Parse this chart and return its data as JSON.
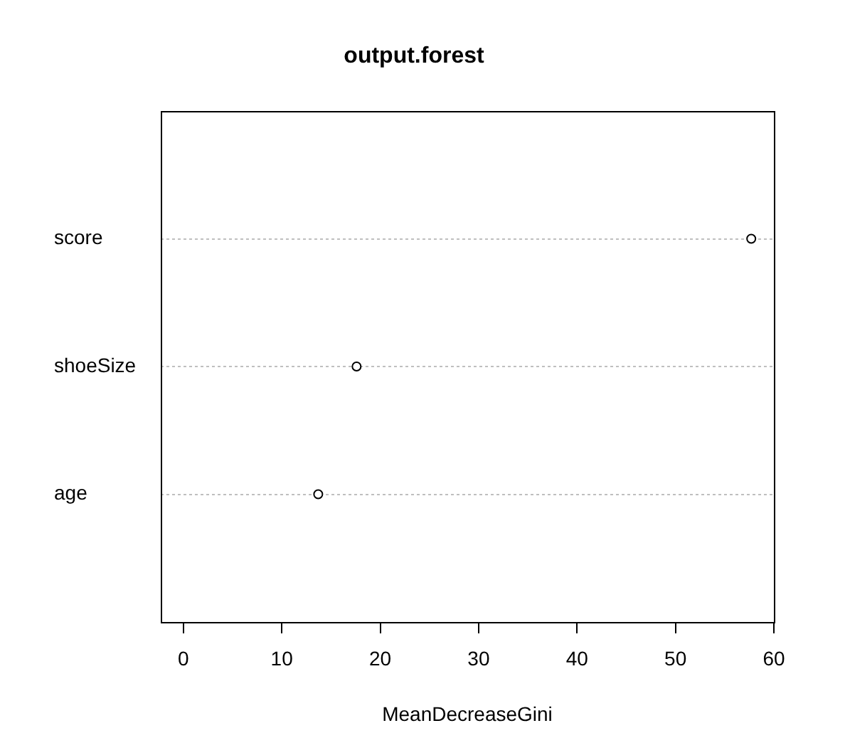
{
  "chart_data": {
    "type": "scatter",
    "orientation": "horizontal",
    "title": "output.forest",
    "xlabel": "MeanDecreaseGini",
    "categories": [
      "score",
      "shoeSize",
      "age"
    ],
    "series": [
      {
        "color": "#000000",
        "values": [
          57.7,
          17.6,
          13.7
        ]
      }
    ],
    "xlim": [
      -2.3,
      60
    ],
    "xticks": [
      0,
      10,
      20,
      30,
      40,
      50,
      60
    ],
    "grid": "y",
    "marker": "circle"
  }
}
